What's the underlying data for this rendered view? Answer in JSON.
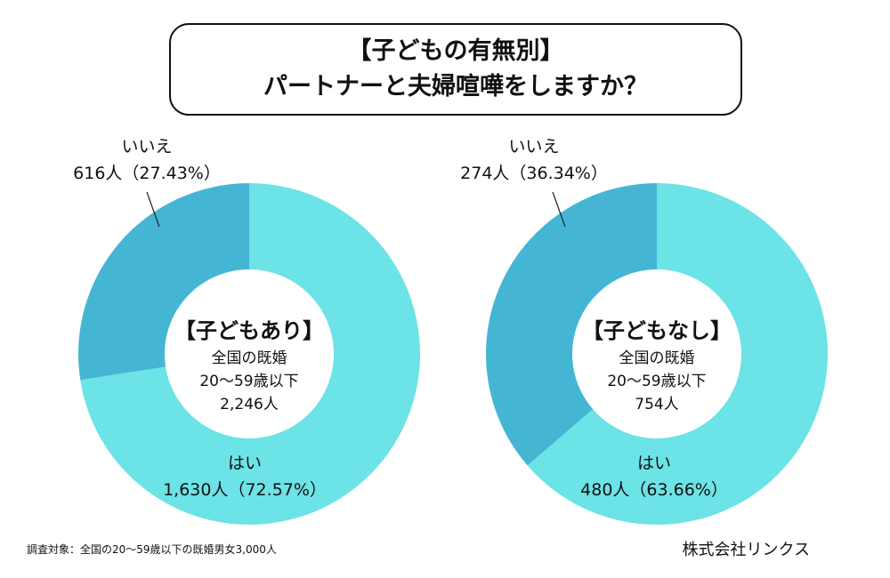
{
  "title": {
    "line1": "【子どもの有無別】",
    "line2": "パートナーと夫婦喧嘩をしますか？"
  },
  "colors": {
    "yes": "#6ce3e6",
    "no": "#44b6d4"
  },
  "chart_data": [
    {
      "type": "pie",
      "variant": "donut",
      "center": {
        "title": "【子どもあり】",
        "line1": "全国の既婚",
        "line2": "20〜59歳以下",
        "line3": "2,246人"
      },
      "slices": [
        {
          "name": "はい",
          "count": 1630,
          "percent": 72.57,
          "label": "1,630人（72.57%）"
        },
        {
          "name": "いいえ",
          "count": 616,
          "percent": 27.43,
          "label": "616人（27.43%）"
        }
      ]
    },
    {
      "type": "pie",
      "variant": "donut",
      "center": {
        "title": "【子どもなし】",
        "line1": "全国の既婚",
        "line2": "20〜59歳以下",
        "line3": "754人"
      },
      "slices": [
        {
          "name": "はい",
          "count": 480,
          "percent": 63.66,
          "label": "480人（63.66%）"
        },
        {
          "name": "いいえ",
          "count": 274,
          "percent": 36.34,
          "label": "274人（36.34%）"
        }
      ]
    }
  ],
  "footer": {
    "note": "調査対象：全国の20〜59歳以下の既婚男女3,000人",
    "company": "株式会社リンクス"
  }
}
